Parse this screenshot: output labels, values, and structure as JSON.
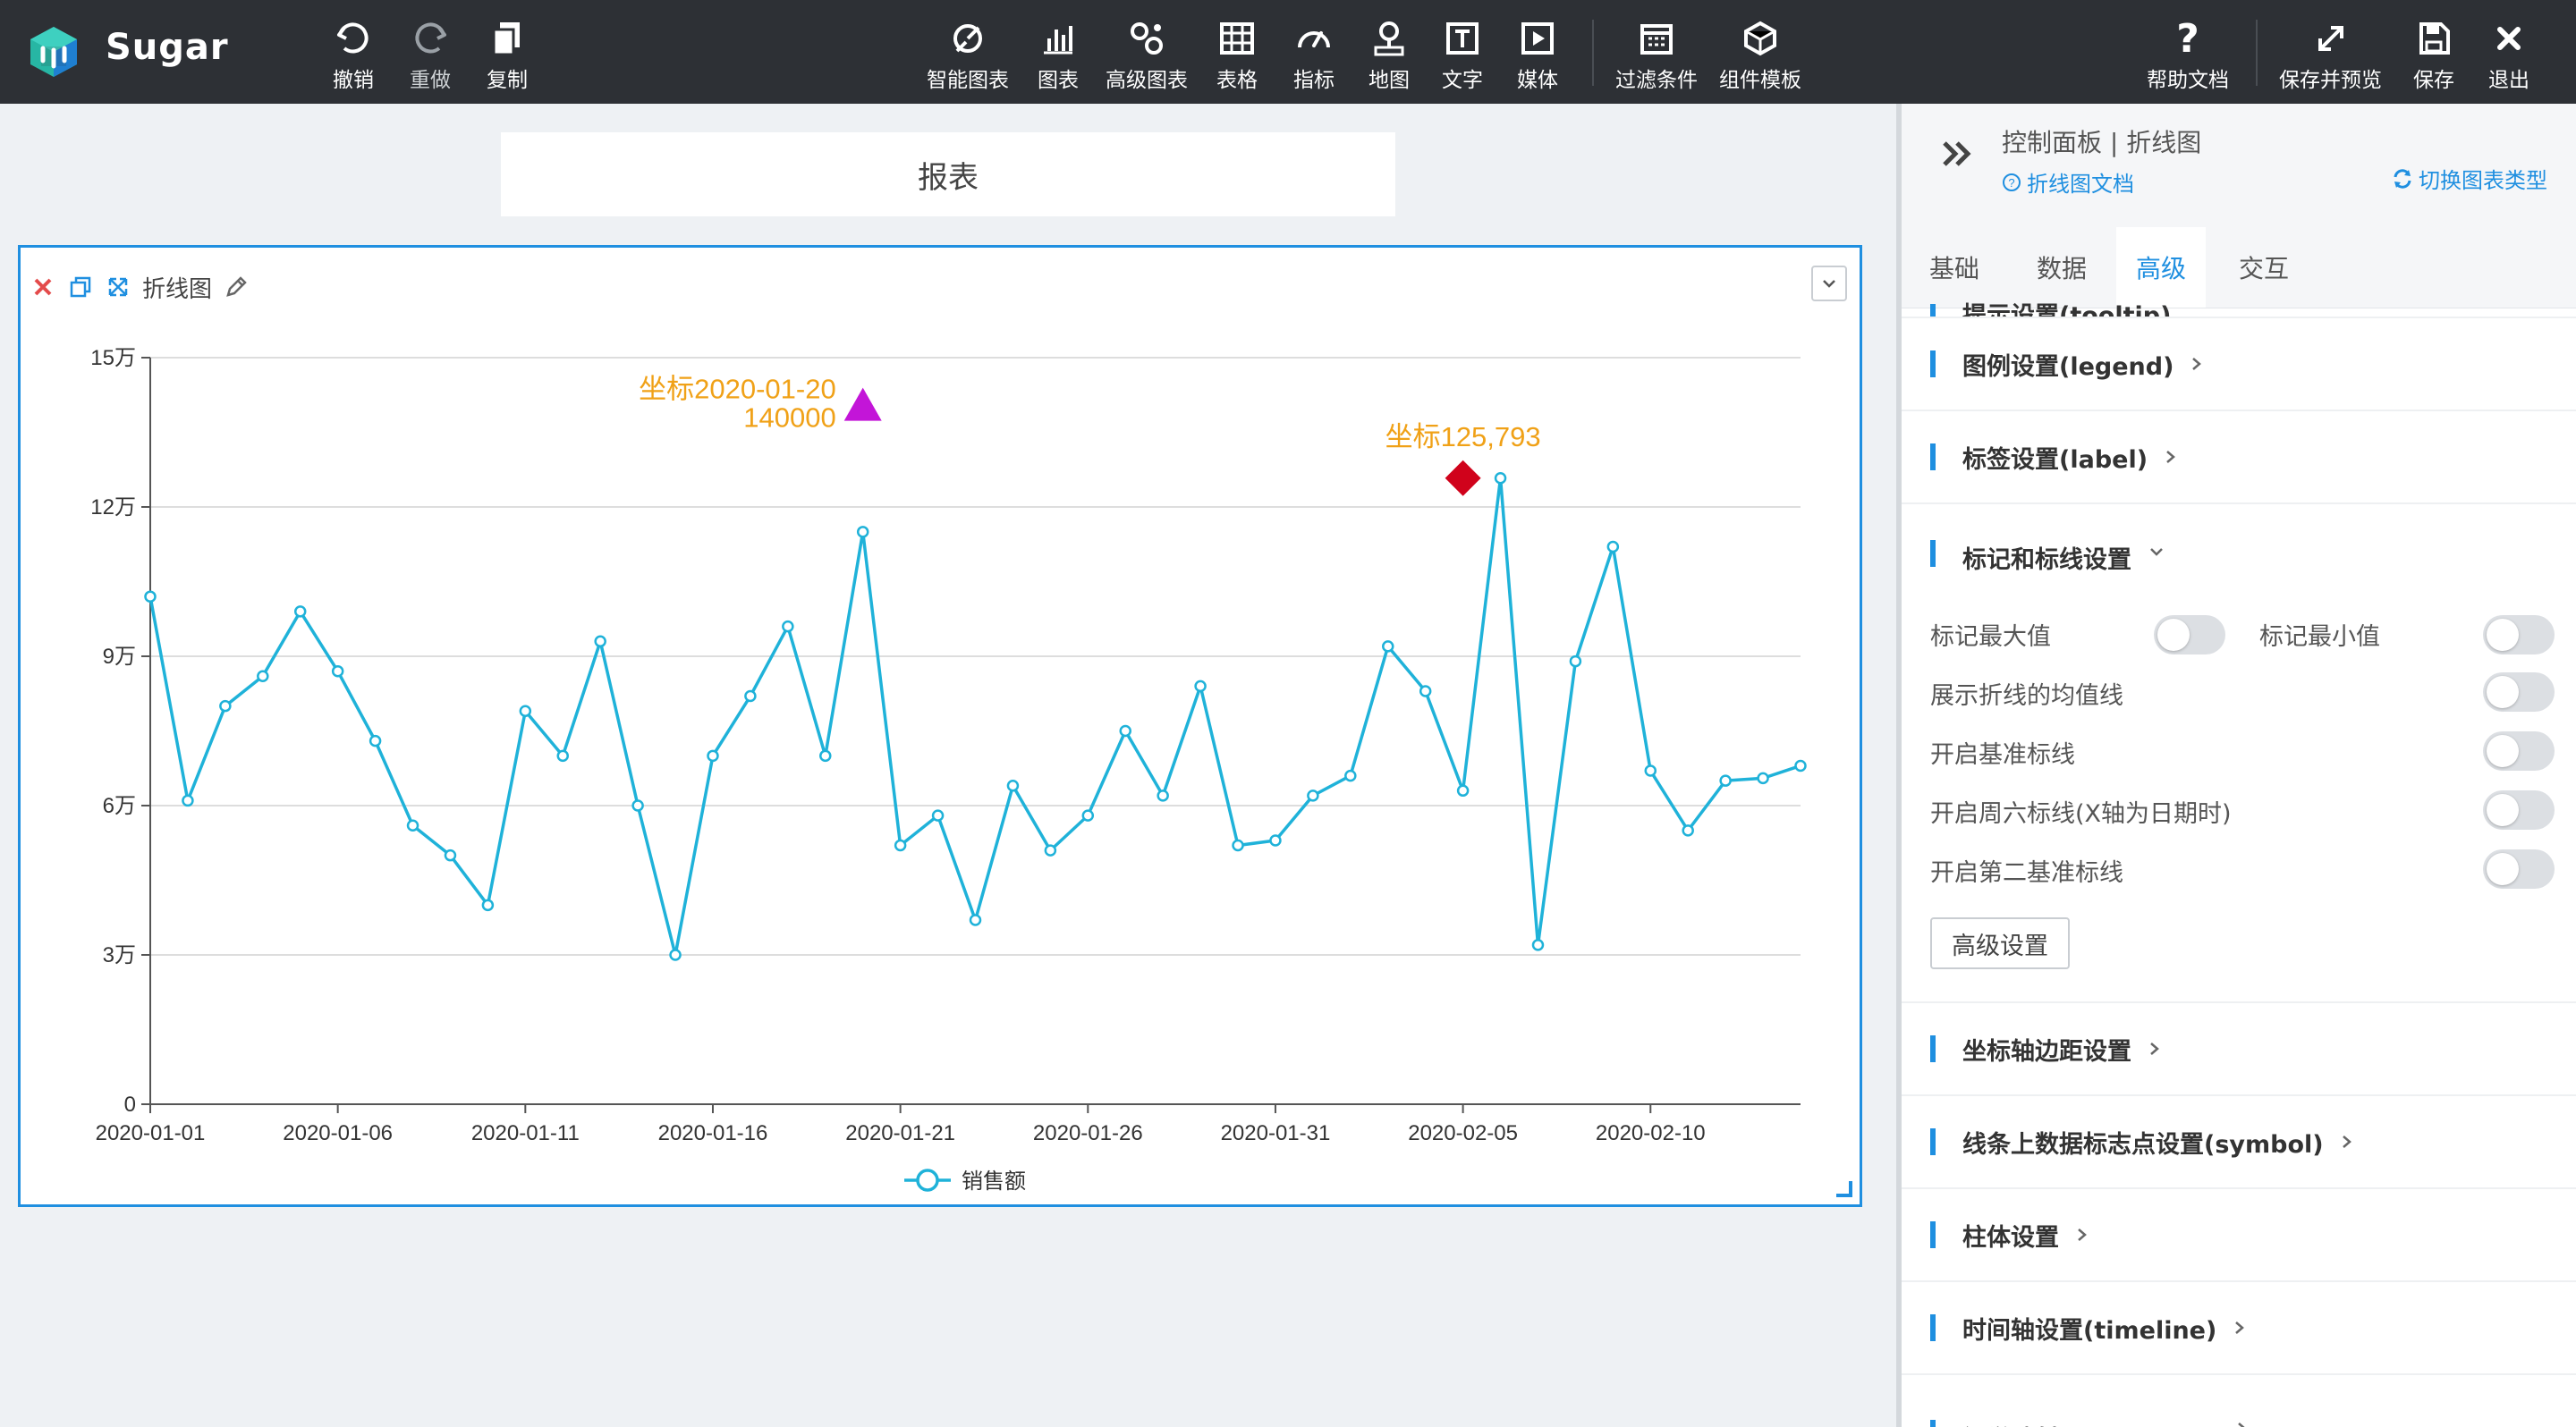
{
  "app": {
    "name": "Sugar"
  },
  "toolbar": {
    "undo": "撤销",
    "redo": "重做",
    "copy": "复制",
    "smart_chart": "智能图表",
    "chart": "图表",
    "advanced_chart": "高级图表",
    "table": "表格",
    "indicator": "指标",
    "map": "地图",
    "text": "文字",
    "media": "媒体",
    "filter": "过滤条件",
    "component_template": "组件模板",
    "help_doc": "帮助文档",
    "save_preview": "保存并预览",
    "save": "保存",
    "exit": "退出"
  },
  "report": {
    "title": "报表"
  },
  "card": {
    "title": "折线图"
  },
  "panel": {
    "title": "控制面板 | 折线图",
    "doc_link": "折线图文档",
    "switch_type": "切换图表类型",
    "tabs": [
      "基础",
      "数据",
      "高级",
      "交互"
    ],
    "active_tab": "高级",
    "sections": {
      "tooltip": "提示设置(tooltip)",
      "legend": "图例设置(legend)",
      "label": "标签设置(label)",
      "markers": "标记和标线设置",
      "axis_margin": "坐标轴边距设置",
      "symbol": "线条上数据标志点设置(symbol)",
      "bar": "柱体设置",
      "timeline": "时间轴设置(timeline)",
      "visualmap": "视觉映射(visualMap)"
    },
    "options": {
      "mark_max": "标记最大值",
      "mark_min": "标记最小值",
      "mean_line": "展示折线的均值线",
      "baseline": "开启基准标线",
      "saturday_line": "开启周六标线(X轴为日期时)",
      "second_baseline": "开启第二基准标线"
    },
    "toggles": {
      "mark_max": false,
      "mark_min": false,
      "mean_line": false,
      "baseline": false,
      "saturday_line": false,
      "second_baseline": false
    },
    "advanced_button": "高级设置"
  },
  "colors": {
    "accent": "#1f8fe0",
    "line": "#1fb2d9",
    "triangle_marker": "#c315d8",
    "diamond_marker": "#d0021b",
    "annotation": "#f0a117"
  },
  "chart_data": {
    "type": "line",
    "x": [
      "2020-01-01",
      "2020-01-02",
      "2020-01-03",
      "2020-01-04",
      "2020-01-05",
      "2020-01-06",
      "2020-01-07",
      "2020-01-08",
      "2020-01-09",
      "2020-01-10",
      "2020-01-11",
      "2020-01-12",
      "2020-01-13",
      "2020-01-14",
      "2020-01-15",
      "2020-01-16",
      "2020-01-17",
      "2020-01-18",
      "2020-01-19",
      "2020-01-20",
      "2020-01-21",
      "2020-01-22",
      "2020-01-23",
      "2020-01-24",
      "2020-01-25",
      "2020-01-26",
      "2020-01-27",
      "2020-01-28",
      "2020-01-29",
      "2020-01-30",
      "2020-01-31",
      "2020-02-01",
      "2020-02-02",
      "2020-02-03",
      "2020-02-04",
      "2020-02-05",
      "2020-02-06",
      "2020-02-07",
      "2020-02-08",
      "2020-02-09",
      "2020-02-10",
      "2020-02-11",
      "2020-02-12",
      "2020-02-13",
      "2020-02-14"
    ],
    "x_tick_labels": [
      "2020-01-01",
      "2020-01-06",
      "2020-01-11",
      "2020-01-16",
      "2020-01-21",
      "2020-01-26",
      "2020-01-31",
      "2020-02-05",
      "2020-02-10"
    ],
    "series": [
      {
        "name": "销售额",
        "values": [
          102000,
          61000,
          80000,
          86000,
          99000,
          87000,
          73000,
          56000,
          50000,
          40000,
          79000,
          70000,
          93000,
          60000,
          30000,
          70000,
          82000,
          96000,
          70000,
          115000,
          52000,
          58000,
          37000,
          64000,
          51000,
          58000,
          75000,
          62000,
          84000,
          52000,
          53000,
          62000,
          66000,
          92000,
          83000,
          63000,
          125793,
          32000,
          89000,
          112000,
          67000,
          55000,
          65000,
          65500,
          68000
        ]
      }
    ],
    "y_ticks": [
      {
        "v": 0,
        "label": "0"
      },
      {
        "v": 30000,
        "label": "3万"
      },
      {
        "v": 60000,
        "label": "6万"
      },
      {
        "v": 90000,
        "label": "9万"
      },
      {
        "v": 120000,
        "label": "12万"
      },
      {
        "v": 150000,
        "label": "15万"
      }
    ],
    "ylim": [
      0,
      150000
    ],
    "legend": "bottom-center",
    "annotations": [
      {
        "shape": "triangle",
        "x": "2020-01-20",
        "y": 140000,
        "text_line1": "坐标2020-01-20",
        "text_line2": "140000"
      },
      {
        "shape": "diamond",
        "x": "2020-02-05",
        "y": 125793,
        "text_line1": "坐标125,793"
      }
    ]
  }
}
